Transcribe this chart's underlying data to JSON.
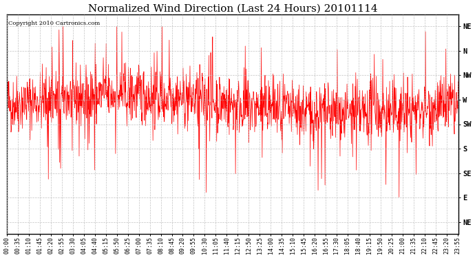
{
  "title": "Normalized Wind Direction (Last 24 Hours) 20101114",
  "copyright_text": "Copyright 2010 Cartronics.com",
  "line_color": "#FF0000",
  "background_color": "#FFFFFF",
  "grid_color": "#AAAAAA",
  "ytick_labels": [
    "NE",
    "N",
    "NW",
    "W",
    "SW",
    "S",
    "SE",
    "E",
    "NE"
  ],
  "ytick_values": [
    9,
    8,
    7,
    6,
    5,
    4,
    3,
    2,
    1
  ],
  "ylim": [
    0.5,
    9.5
  ],
  "title_fontsize": 11,
  "tick_fontsize": 7.5,
  "xtick_labels": [
    "00:00",
    "00:35",
    "01:10",
    "01:45",
    "02:20",
    "02:55",
    "03:30",
    "04:05",
    "04:40",
    "05:15",
    "05:50",
    "06:25",
    "07:00",
    "07:35",
    "08:10",
    "08:45",
    "09:20",
    "09:55",
    "10:30",
    "11:05",
    "11:40",
    "12:15",
    "12:50",
    "13:25",
    "14:00",
    "14:35",
    "15:10",
    "15:45",
    "16:20",
    "16:55",
    "17:30",
    "18:05",
    "18:40",
    "19:15",
    "19:50",
    "20:25",
    "21:00",
    "21:35",
    "22:10",
    "22:45",
    "23:20",
    "23:55"
  ],
  "seed": 42,
  "n_points": 1440
}
